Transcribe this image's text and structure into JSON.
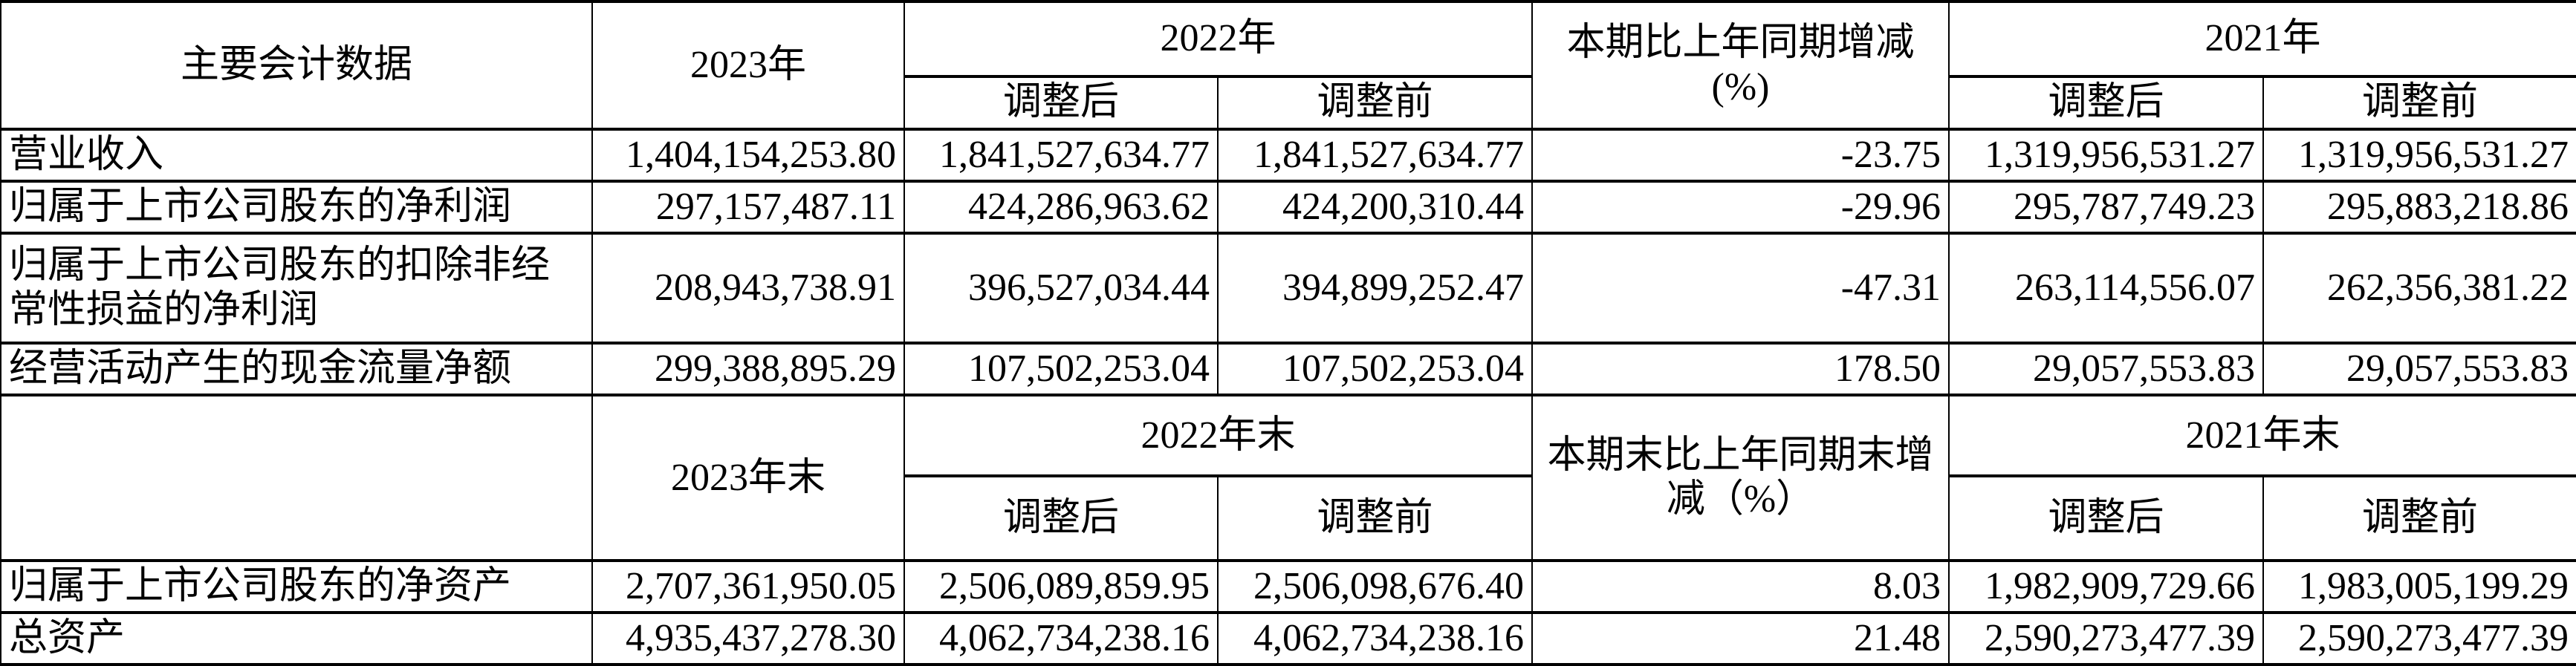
{
  "header": {
    "label": "主要会计数据",
    "y2023": "2023年",
    "y2022": "2022年",
    "change": "本期比上年同期增减(%)",
    "y2021": "2021年",
    "adjusted_after": "调整后",
    "adjusted_before": "调整前"
  },
  "rows": [
    {
      "label": "营业收入",
      "v2023": "1,404,154,253.80",
      "v2022a": "1,841,527,634.77",
      "v2022b": "1,841,527,634.77",
      "chg": "-23.75",
      "v2021a": "1,319,956,531.27",
      "v2021b": "1,319,956,531.27"
    },
    {
      "label": "归属于上市公司股东的净利润",
      "v2023": "297,157,487.11",
      "v2022a": "424,286,963.62",
      "v2022b": "424,200,310.44",
      "chg": "-29.96",
      "v2021a": "295,787,749.23",
      "v2021b": "295,883,218.86"
    },
    {
      "label": "归属于上市公司股东的扣除非经常性损益的净利润",
      "v2023": "208,943,738.91",
      "v2022a": "396,527,034.44",
      "v2022b": "394,899,252.47",
      "chg": "-47.31",
      "v2021a": "263,114,556.07",
      "v2021b": "262,356,381.22"
    },
    {
      "label": "经营活动产生的现金流量净额",
      "v2023": "299,388,895.29",
      "v2022a": "107,502,253.04",
      "v2022b": "107,502,253.04",
      "chg": "178.50",
      "v2021a": "29,057,553.83",
      "v2021b": "29,057,553.83"
    }
  ],
  "header2": {
    "label": "",
    "y2023": "2023年末",
    "y2022": "2022年末",
    "change": "本期末比上年同期末增减（%）",
    "y2021": "2021年末",
    "adjusted_after": "调整后",
    "adjusted_before": "调整前"
  },
  "rows2": [
    {
      "label": "归属于上市公司股东的净资产",
      "v2023": "2,707,361,950.05",
      "v2022a": "2,506,089,859.95",
      "v2022b": "2,506,098,676.40",
      "chg": "8.03",
      "v2021a": "1,982,909,729.66",
      "v2021b": "1,983,005,199.29"
    },
    {
      "label": "总资产",
      "v2023": "4,935,437,278.30",
      "v2022a": "4,062,734,238.16",
      "v2022b": "4,062,734,238.16",
      "chg": "21.48",
      "v2021a": "2,590,273,477.39",
      "v2021b": "2,590,273,477.39"
    }
  ]
}
